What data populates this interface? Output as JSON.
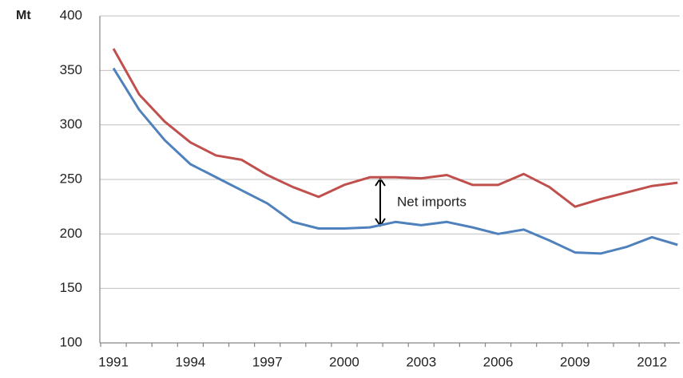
{
  "chart_data": {
    "type": "line",
    "y_axis_label": "Mt",
    "annotation": "Net imports",
    "categories": [
      "1991",
      null,
      null,
      "1994",
      null,
      null,
      "1997",
      null,
      null,
      "2000",
      null,
      null,
      "2003",
      null,
      null,
      "2006",
      null,
      null,
      "2009",
      null,
      null,
      "2012",
      null
    ],
    "series": [
      {
        "color": "#c0504d",
        "values": [
          370,
          328,
          303,
          284,
          272,
          268,
          254,
          243,
          234,
          245,
          252,
          252,
          251,
          254,
          245,
          245,
          255,
          243,
          225,
          232,
          238,
          244,
          247
        ]
      },
      {
        "color": "#4f81bd",
        "values": [
          352,
          314,
          286,
          264,
          252,
          240,
          228,
          211,
          205,
          205,
          206,
          211,
          208,
          211,
          206,
          200,
          204,
          194,
          183,
          182,
          188,
          197,
          190
        ]
      }
    ],
    "ylim": [
      100,
      400
    ],
    "yticks": [
      100,
      150,
      200,
      250,
      300,
      350,
      400
    ],
    "grid": true
  }
}
